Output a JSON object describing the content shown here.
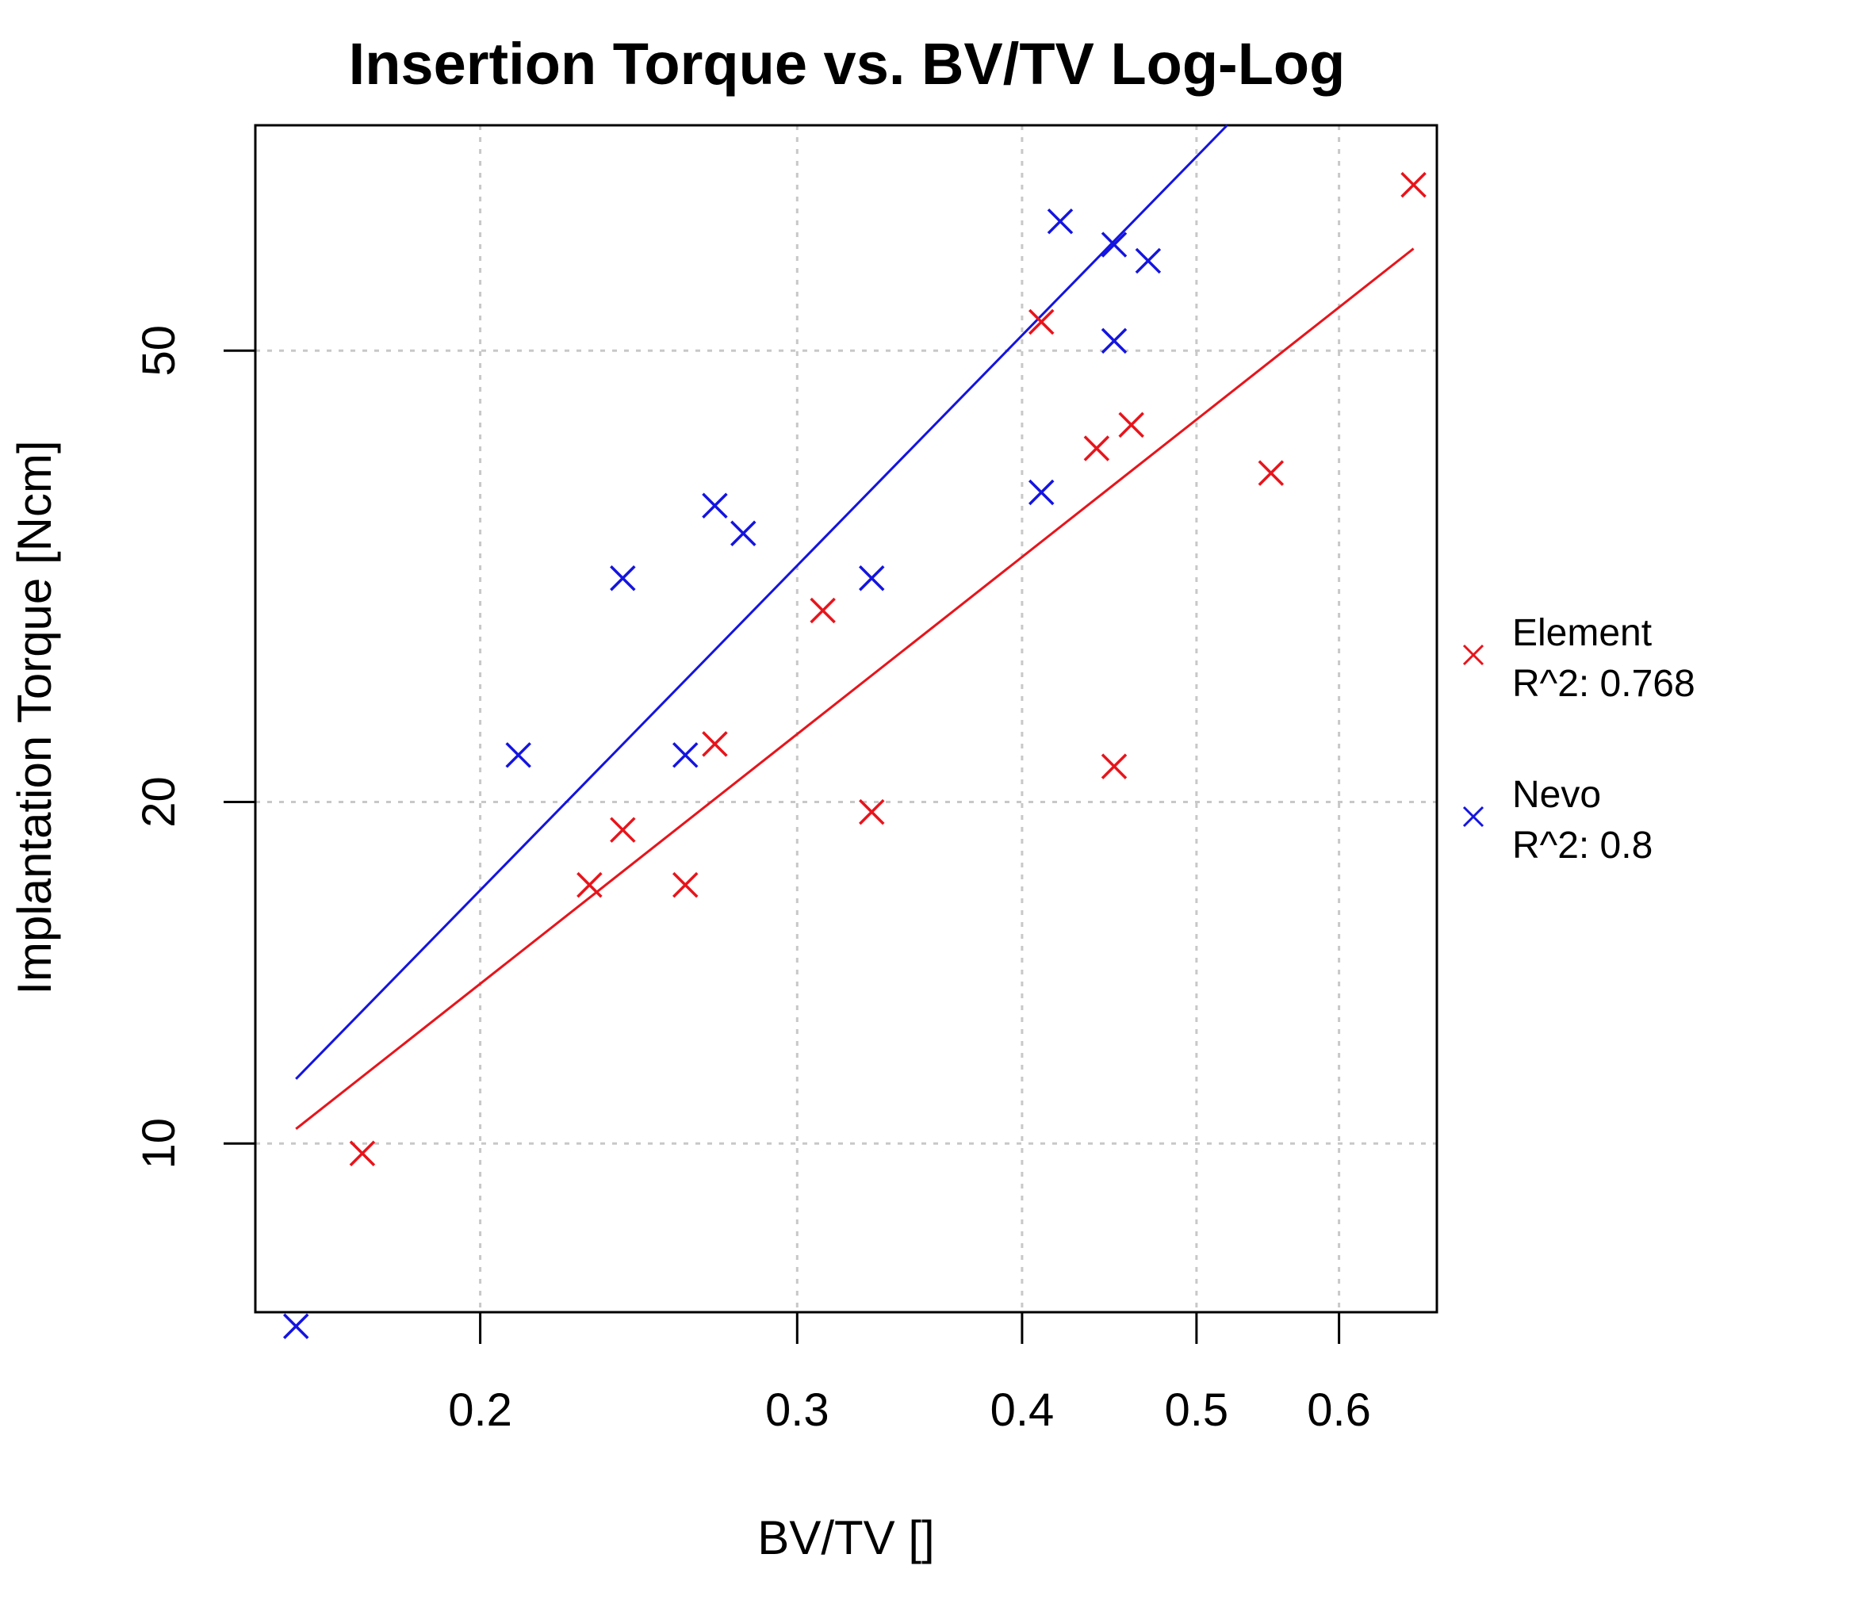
{
  "chart_data": {
    "type": "scatter",
    "title": "Insertion Torque vs. BV/TV Log-Log",
    "xlabel": "BV/TV []",
    "ylabel": "Implantation Torque [Ncm]",
    "x_scale": "log",
    "y_scale": "log",
    "xlim": [
      0.15,
      0.68
    ],
    "ylim": [
      7.1,
      79
    ],
    "x_ticks": [
      {
        "value": 0.2,
        "label": "0.2"
      },
      {
        "value": 0.3,
        "label": "0.3"
      },
      {
        "value": 0.4,
        "label": "0.4"
      },
      {
        "value": 0.5,
        "label": "0.5"
      },
      {
        "value": 0.6,
        "label": "0.6"
      }
    ],
    "y_ticks": [
      {
        "value": 10,
        "label": "10"
      },
      {
        "value": 20,
        "label": "20"
      },
      {
        "value": 50,
        "label": "50"
      }
    ],
    "grid": true,
    "legend_position": "right",
    "series": [
      {
        "name": "Element",
        "r2_label": "R^2: 0.768",
        "color": "#e8141b",
        "marker": "x",
        "points": [
          {
            "x": 0.172,
            "y": 9.8
          },
          {
            "x": 0.23,
            "y": 16.9
          },
          {
            "x": 0.24,
            "y": 18.9
          },
          {
            "x": 0.26,
            "y": 16.9
          },
          {
            "x": 0.27,
            "y": 22.5
          },
          {
            "x": 0.31,
            "y": 29.5
          },
          {
            "x": 0.33,
            "y": 19.6
          },
          {
            "x": 0.41,
            "y": 53.0
          },
          {
            "x": 0.44,
            "y": 41.0
          },
          {
            "x": 0.45,
            "y": 21.5
          },
          {
            "x": 0.46,
            "y": 43.0
          },
          {
            "x": 0.55,
            "y": 39.0
          },
          {
            "x": 0.66,
            "y": 70.0
          }
        ],
        "fit": {
          "x0": 0.158,
          "y0": 10.3,
          "x1": 0.66,
          "y1": 61.5
        }
      },
      {
        "name": "Nevo",
        "r2_label": "R^2: 0.8",
        "color": "#1414e0",
        "marker": "x",
        "points": [
          {
            "x": 0.158,
            "y": 6.9
          },
          {
            "x": 0.21,
            "y": 22.0
          },
          {
            "x": 0.24,
            "y": 31.5
          },
          {
            "x": 0.26,
            "y": 22.0
          },
          {
            "x": 0.27,
            "y": 36.5
          },
          {
            "x": 0.28,
            "y": 34.5
          },
          {
            "x": 0.33,
            "y": 31.5
          },
          {
            "x": 0.41,
            "y": 37.5
          },
          {
            "x": 0.42,
            "y": 65.0
          },
          {
            "x": 0.45,
            "y": 51.0
          },
          {
            "x": 0.45,
            "y": 62.0
          },
          {
            "x": 0.47,
            "y": 60.0
          }
        ],
        "fit": {
          "x0": 0.158,
          "y0": 11.4,
          "x1": 0.52,
          "y1": 79.0
        }
      }
    ]
  }
}
